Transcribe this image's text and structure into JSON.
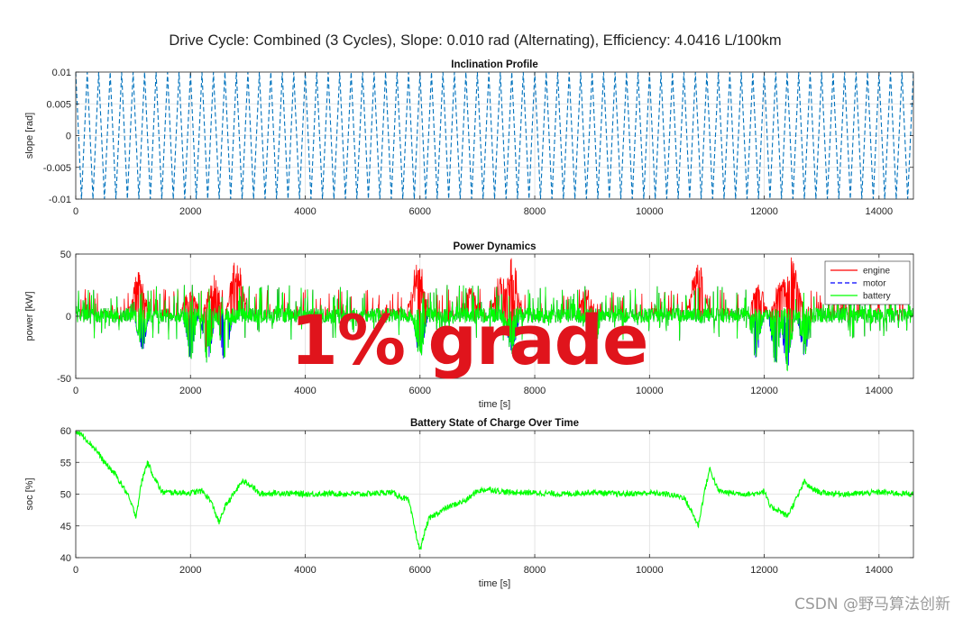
{
  "suptitle": "Drive Cycle: Combined (3 Cycles), Slope: 0.010 rad (Alternating), Efficiency: 4.0416 L/100km",
  "overlay_text": "1% grade",
  "watermark": "CSDN @野马算法创新",
  "colors": {
    "slope": "#0072bd",
    "engine": "#ff0000",
    "motor": "#0000ff",
    "battery": "#00ff00",
    "overlay": "#e0141c"
  },
  "chart_data": [
    {
      "type": "line",
      "title": "Inclination Profile",
      "xlabel": "",
      "ylabel": "slope [rad]",
      "xlim": [
        0,
        14600
      ],
      "ylim": [
        -0.01,
        0.01
      ],
      "xticks": [
        0,
        2000,
        4000,
        6000,
        8000,
        10000,
        12000,
        14000
      ],
      "yticks": [
        -0.01,
        -0.005,
        0,
        0.005,
        0.01
      ],
      "ytick_labels": [
        "-0.01",
        "-0.005",
        "0",
        "0.005",
        "0.01"
      ],
      "grid": true,
      "series": [
        {
          "style": "dashed triangle wave",
          "color": "#0072bd",
          "amplitude": 0.01,
          "period": 200,
          "x": [
            0,
            100,
            200,
            300,
            400,
            500,
            600
          ],
          "y": [
            0.01,
            -0.01,
            0.01,
            -0.01,
            0.01,
            -0.01,
            0.01
          ]
        }
      ]
    },
    {
      "type": "line",
      "title": "Power Dynamics",
      "xlabel": "time [s]",
      "ylabel": "power [kW]",
      "xlim": [
        0,
        14600
      ],
      "ylim": [
        -50,
        50
      ],
      "xticks": [
        0,
        2000,
        4000,
        6000,
        8000,
        10000,
        12000,
        14000
      ],
      "yticks": [
        -50,
        0,
        50
      ],
      "grid": true,
      "legend": "top-right",
      "series": [
        {
          "name": "engine",
          "color": "#ff0000",
          "style": "solid",
          "peaks": [
            [
              1100,
              37
            ],
            [
              2000,
              25
            ],
            [
              2400,
              35
            ],
            [
              2800,
              50
            ],
            [
              5970,
              48
            ],
            [
              6900,
              25
            ],
            [
              7400,
              38
            ],
            [
              7600,
              50
            ],
            [
              8900,
              22
            ],
            [
              10850,
              50
            ],
            [
              11900,
              28
            ],
            [
              12300,
              35
            ],
            [
              12500,
              50
            ]
          ]
        },
        {
          "name": "motor",
          "color": "#0000ff",
          "style": "dashed",
          "troughs": [
            [
              1150,
              -30
            ],
            [
              2000,
              -36
            ],
            [
              2300,
              -40
            ],
            [
              2600,
              -45
            ],
            [
              6000,
              -35
            ],
            [
              7600,
              -33
            ],
            [
              11850,
              -35
            ],
            [
              12200,
              -40
            ],
            [
              12400,
              -45
            ],
            [
              12700,
              -33
            ]
          ]
        },
        {
          "name": "battery",
          "color": "#00ff00",
          "style": "solid",
          "range": [
            -33,
            28
          ]
        }
      ]
    },
    {
      "type": "line",
      "title": "Battery State of Charge Over Time",
      "xlabel": "time [s]",
      "ylabel": "soc [%]",
      "xlim": [
        0,
        14600
      ],
      "ylim": [
        40,
        60
      ],
      "xticks": [
        0,
        2000,
        4000,
        6000,
        8000,
        10000,
        12000,
        14000
      ],
      "yticks": [
        40,
        45,
        50,
        55,
        60
      ],
      "grid": true,
      "series": [
        {
          "color": "#00ff00",
          "x": [
            0,
            150,
            350,
            500,
            700,
            900,
            1050,
            1150,
            1250,
            1350,
            1500,
            2000,
            2200,
            2350,
            2500,
            2600,
            2750,
            2900,
            3050,
            3200,
            3500,
            4000,
            4500,
            5000,
            5500,
            5800,
            5900,
            6000,
            6050,
            6150,
            6300,
            6500,
            6800,
            7000,
            7200,
            7500,
            8000,
            8500,
            9000,
            9500,
            10000,
            10300,
            10600,
            10750,
            10850,
            10950,
            11050,
            11200,
            11400,
            11800,
            12000,
            12100,
            12250,
            12400,
            12600,
            12700,
            12800,
            13000,
            13500,
            14000,
            14600
          ],
          "y": [
            60,
            59,
            57,
            55,
            53,
            50,
            46.5,
            52,
            55,
            53,
            50.3,
            50.2,
            50.5,
            49,
            45.5,
            48,
            50,
            52,
            51.5,
            50,
            50.2,
            50,
            50.1,
            50,
            50.3,
            49,
            45,
            41,
            43,
            46,
            47,
            48,
            49,
            50.5,
            50.8,
            50.3,
            50.2,
            50,
            50.3,
            50,
            50.2,
            50,
            49.5,
            47,
            45,
            50,
            54,
            50.5,
            50.2,
            50,
            50.5,
            48,
            47.5,
            46.5,
            50,
            52,
            51,
            50.2,
            50,
            50.3,
            50
          ]
        }
      ]
    }
  ]
}
